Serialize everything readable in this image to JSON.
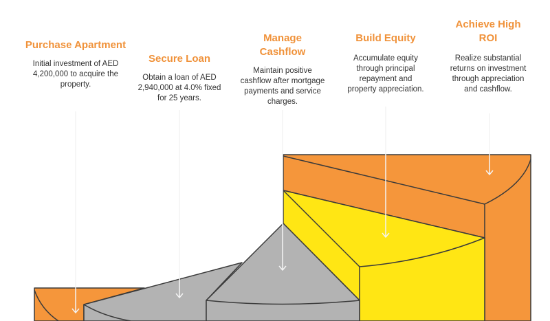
{
  "steps": [
    {
      "title": "Purchase Apartment",
      "description": "Initial investment of AED 4,200,000 to acquire the property."
    },
    {
      "title": "Secure Loan",
      "description": "Obtain a loan of AED 2,940,000 at 4.0% fixed for 25 years."
    },
    {
      "title": "Manage Cashflow",
      "description": "Maintain positive cashflow after mortgage payments and service charges."
    },
    {
      "title": "Build Equity",
      "description": "Accumulate equity through principal repayment and property appreciation."
    },
    {
      "title": "Achieve High ROI",
      "description": "Realize substantial returns on investment through appreciation and cashflow."
    }
  ],
  "colors": {
    "orange": "#f5963b",
    "gray": "#b3b3b3",
    "yellow": "#ffe614",
    "title": "#f0923a"
  }
}
